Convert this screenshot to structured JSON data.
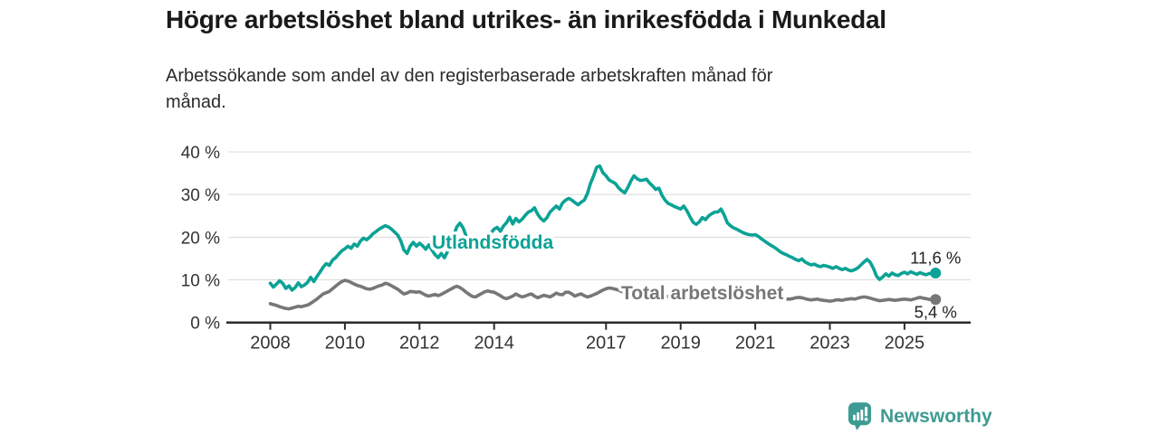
{
  "header": {
    "title": "Högre arbetslöshet bland utrikes- än inrikesfödda i Munkedal",
    "subtitle_lines": [
      "Arbetssökande som andel av den registerbaserade arbetskraften månad för",
      "månad."
    ]
  },
  "footer": {
    "brand": "Newsworthy",
    "brand_color": "#3E9B93"
  },
  "chart_data": {
    "type": "line",
    "title": "Högre arbetslöshet bland utrikes- än inrikesfödda i Munkedal",
    "subtitle": "Arbetssökande som andel av den registerbaserade arbetskraften månad för månad.",
    "frequency": "monthly",
    "x_start": "2008-01",
    "x_end": "2025-11",
    "ylim": [
      0,
      40
    ],
    "grid": "horizontal",
    "legend_position": "inline-labels",
    "y_ticks": [
      {
        "value": 0,
        "label": "0 %"
      },
      {
        "value": 10,
        "label": "10 %"
      },
      {
        "value": 20,
        "label": "20 %"
      },
      {
        "value": 30,
        "label": "30 %"
      },
      {
        "value": 40,
        "label": "40 %"
      }
    ],
    "x_ticks": [
      {
        "year": 2008,
        "label": "2008"
      },
      {
        "year": 2010,
        "label": "2010"
      },
      {
        "year": 2012,
        "label": "2012"
      },
      {
        "year": 2014,
        "label": "2014"
      },
      {
        "year": 2017,
        "label": "2017"
      },
      {
        "year": 2019,
        "label": "2019"
      },
      {
        "year": 2021,
        "label": "2021"
      },
      {
        "year": 2023,
        "label": "2023"
      },
      {
        "year": 2025,
        "label": "2025"
      }
    ],
    "series": [
      {
        "name": "Utlandsfödda",
        "color": "#0CA295",
        "end_label": "11,6 %",
        "end_value": 11.6,
        "values": [
          9.2,
          8.3,
          9.0,
          9.8,
          9.2,
          8.0,
          8.6,
          7.6,
          8.2,
          9.3,
          8.4,
          8.8,
          9.4,
          10.6,
          9.6,
          10.8,
          11.8,
          13.0,
          13.8,
          13.4,
          14.6,
          15.2,
          16.0,
          16.8,
          17.3,
          17.9,
          17.4,
          18.4,
          17.9,
          19.1,
          19.8,
          19.4,
          20.0,
          20.8,
          21.3,
          21.9,
          22.3,
          22.7,
          22.4,
          21.9,
          21.2,
          20.5,
          19.1,
          17.0,
          16.2,
          17.9,
          18.8,
          17.9,
          18.6,
          18.0,
          17.2,
          18.2,
          17.0,
          15.9,
          15.2,
          16.2,
          15.2,
          16.6,
          18.0,
          20.5,
          22.4,
          23.3,
          22.2,
          20.3,
          18.9,
          18.1,
          17.5,
          17.2,
          17.4,
          18.2,
          19.6,
          21.0,
          21.9,
          22.3,
          21.4,
          22.6,
          23.4,
          24.7,
          23.1,
          24.4,
          23.6,
          24.2,
          25.1,
          25.9,
          26.2,
          26.9,
          25.4,
          24.4,
          23.8,
          24.6,
          25.9,
          26.6,
          27.3,
          26.6,
          28.0,
          28.7,
          29.1,
          28.7,
          28.1,
          27.6,
          28.2,
          28.7,
          30.2,
          32.6,
          34.4,
          36.4,
          36.7,
          35.1,
          34.4,
          33.4,
          33.0,
          32.6,
          31.6,
          30.9,
          30.4,
          31.6,
          33.2,
          34.4,
          33.7,
          33.3,
          33.4,
          33.6,
          32.7,
          32.0,
          31.2,
          31.5,
          29.8,
          28.7,
          27.9,
          27.6,
          27.2,
          26.9,
          26.6,
          27.3,
          26.2,
          24.8,
          23.5,
          23.0,
          23.6,
          24.6,
          24.1,
          25.0,
          25.5,
          25.9,
          25.9,
          26.6,
          25.2,
          23.4,
          22.7,
          22.2,
          21.9,
          21.5,
          21.1,
          20.8,
          20.6,
          20.5,
          20.6,
          20.2,
          19.6,
          19.1,
          18.6,
          18.1,
          17.7,
          17.2,
          16.6,
          16.2,
          15.9,
          15.5,
          15.2,
          14.8,
          14.5,
          14.9,
          14.2,
          13.8,
          13.5,
          13.7,
          13.3,
          13.1,
          13.4,
          13.2,
          13.0,
          12.7,
          13.1,
          12.7,
          12.4,
          12.7,
          12.3,
          12.1,
          12.4,
          12.8,
          13.5,
          14.2,
          14.8,
          14.1,
          12.7,
          10.9,
          10.1,
          10.7,
          11.4,
          10.9,
          11.6,
          11.2,
          11.0,
          11.5,
          11.8,
          11.4,
          11.9,
          11.6,
          11.3,
          11.7,
          11.4,
          11.2,
          11.5,
          11.4,
          11.6
        ]
      },
      {
        "name": "Total arbetslöshet",
        "color": "#777777",
        "end_label": "5,4 %",
        "end_value": 5.4,
        "values": [
          4.4,
          4.2,
          4.0,
          3.7,
          3.5,
          3.3,
          3.2,
          3.4,
          3.6,
          3.8,
          3.7,
          3.9,
          4.1,
          4.5,
          5.0,
          5.5,
          6.1,
          6.7,
          7.0,
          7.3,
          7.9,
          8.5,
          9.1,
          9.6,
          9.9,
          9.7,
          9.4,
          9.0,
          8.7,
          8.5,
          8.2,
          7.9,
          7.8,
          8.0,
          8.3,
          8.6,
          8.8,
          9.2,
          9.0,
          8.6,
          8.2,
          7.8,
          7.2,
          6.7,
          6.9,
          7.3,
          7.2,
          7.1,
          7.2,
          6.8,
          6.4,
          6.2,
          6.4,
          6.6,
          6.3,
          6.6,
          7.0,
          7.4,
          7.8,
          8.2,
          8.5,
          8.2,
          7.7,
          7.1,
          6.6,
          6.1,
          6.0,
          6.4,
          6.8,
          7.2,
          7.4,
          7.2,
          7.1,
          6.7,
          6.3,
          5.8,
          5.6,
          5.9,
          6.2,
          6.7,
          6.3,
          6.0,
          6.2,
          6.5,
          6.7,
          6.2,
          5.8,
          6.1,
          6.4,
          6.2,
          6.0,
          6.4,
          6.9,
          6.6,
          6.5,
          7.1,
          7.1,
          6.7,
          6.2,
          6.5,
          6.7,
          6.3,
          6.0,
          6.2,
          6.5,
          6.8,
          7.2,
          7.6,
          7.9,
          8.1,
          8.0,
          7.8,
          7.6,
          7.3,
          7.0,
          6.7,
          6.5,
          6.6,
          6.8,
          6.7,
          6.7,
          6.6,
          6.4,
          6.2,
          6.1,
          6.0,
          6.1,
          6.2,
          6.1,
          6.0,
          5.9,
          5.8,
          5.8,
          5.9,
          6.0,
          6.1,
          6.0,
          5.9,
          5.8,
          5.9,
          6.0,
          6.1,
          6.2,
          6.3,
          6.4,
          6.6,
          6.8,
          7.0,
          7.0,
          6.9,
          6.8,
          6.7,
          6.6,
          6.5,
          6.4,
          6.3,
          6.2,
          6.1,
          6.0,
          5.9,
          5.9,
          5.8,
          5.7,
          5.7,
          5.6,
          5.6,
          5.5,
          5.5,
          5.6,
          5.8,
          5.9,
          5.8,
          5.6,
          5.4,
          5.3,
          5.4,
          5.5,
          5.3,
          5.2,
          5.1,
          5.0,
          5.1,
          5.3,
          5.3,
          5.2,
          5.4,
          5.5,
          5.6,
          5.5,
          5.7,
          5.9,
          6.0,
          5.9,
          5.7,
          5.5,
          5.3,
          5.1,
          5.2,
          5.3,
          5.4,
          5.3,
          5.2,
          5.3,
          5.4,
          5.5,
          5.4,
          5.3,
          5.5,
          5.7,
          5.9,
          5.7,
          5.6,
          5.4,
          5.5,
          5.4
        ]
      }
    ]
  }
}
